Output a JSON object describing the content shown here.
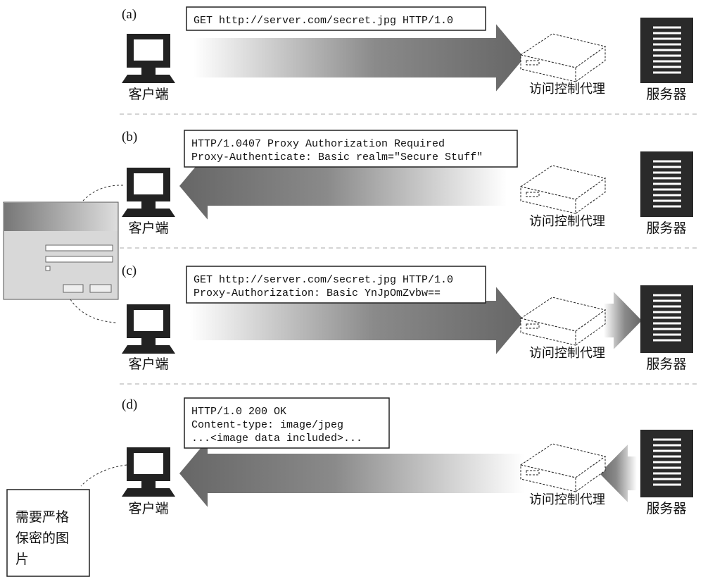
{
  "panels": [
    {
      "label": "(a)",
      "message": [
        "GET http://server.com/secret.jpg HTTP/1.0"
      ],
      "client": "客户端",
      "proxy": "访问控制代理",
      "server": "服务器"
    },
    {
      "label": "(b)",
      "message": [
        "HTTP/1.0407 Proxy Authorization Required",
        "Proxy-Authenticate: Basic realm=\"Secure Stuff\""
      ],
      "client": "客户端",
      "proxy": "访问控制代理",
      "server": "服务器"
    },
    {
      "label": "(c)",
      "message": [
        "GET http://server.com/secret.jpg HTTP/1.0",
        "Proxy-Authorization: Basic YnJpOmZvbw=="
      ],
      "client": "客户端",
      "proxy": "访问控制代理",
      "server": "服务器"
    },
    {
      "label": "(d)",
      "message": [
        "HTTP/1.0 200 OK",
        "Content-type: image/jpeg",
        "...<image data included>..."
      ],
      "client": "客户端",
      "proxy": "访问控制代理",
      "server": "服务器"
    }
  ],
  "note": [
    "需要严格",
    "保密的图",
    "片"
  ]
}
